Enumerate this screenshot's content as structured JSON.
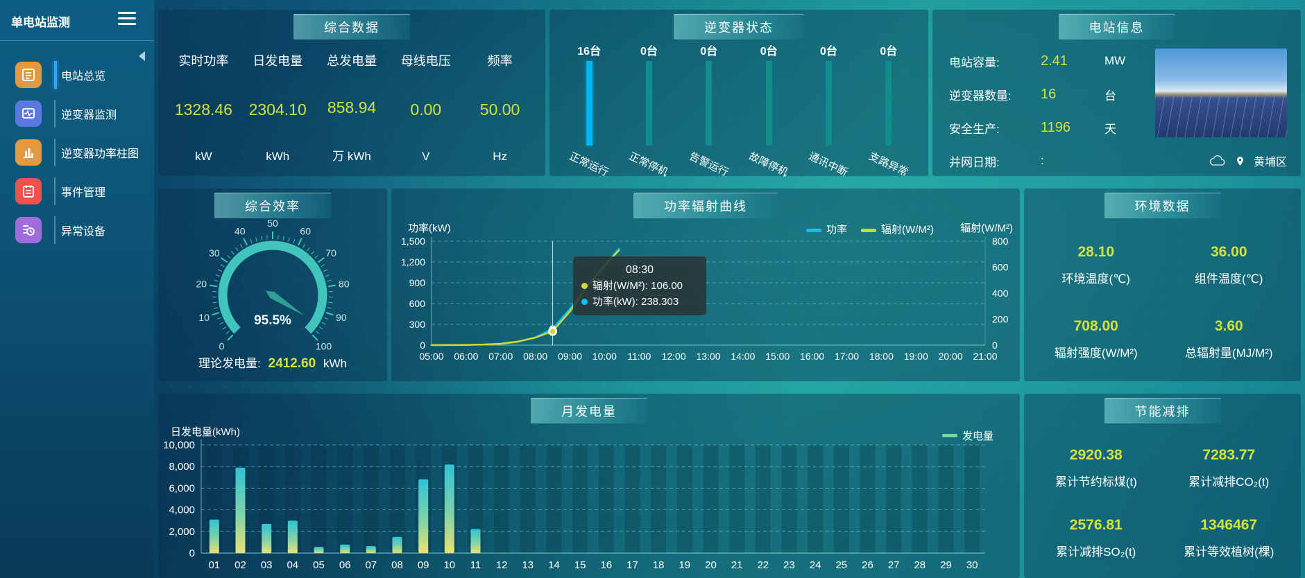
{
  "app": {
    "title": "单电站监测"
  },
  "colors": {
    "accent_value": "#d3e23c",
    "power_line": "#00c3ff",
    "radiation_line": "#d6d430",
    "active_bar": "#00b6f2",
    "idle_bar": "#118d8d"
  },
  "sidebar": {
    "items": [
      {
        "label": "电站总览",
        "color": "#e2993f",
        "active": true
      },
      {
        "label": "逆变器监测",
        "color": "#5b78e0",
        "active": false
      },
      {
        "label": "逆变器功率柱图",
        "color": "#e2993f",
        "active": false
      },
      {
        "label": "事件管理",
        "color": "#ef5350",
        "active": false
      },
      {
        "label": "异常设备",
        "color": "#9e6ddb",
        "active": false
      }
    ]
  },
  "summary": {
    "title": "综合数据",
    "metrics": [
      {
        "label": "实时功率",
        "value": "1328.46",
        "unit": "kW"
      },
      {
        "label": "日发电量",
        "value": "2304.10",
        "unit": "kWh"
      },
      {
        "label": "总发电量",
        "value": "858.94",
        "unit": "万 kWh"
      },
      {
        "label": "母线电压",
        "value": "0.00",
        "unit": "V"
      },
      {
        "label": "频率",
        "value": "50.00",
        "unit": "Hz"
      }
    ]
  },
  "inverter_status": {
    "title": "逆变器状态",
    "items": [
      {
        "count": "16台",
        "label": "正常运行",
        "highlight": true
      },
      {
        "count": "0台",
        "label": "正常停机",
        "highlight": false
      },
      {
        "count": "0台",
        "label": "告警运行",
        "highlight": false
      },
      {
        "count": "0台",
        "label": "故障停机",
        "highlight": false
      },
      {
        "count": "0台",
        "label": "通讯中断",
        "highlight": false
      },
      {
        "count": "0台",
        "label": "支路异常",
        "highlight": false
      }
    ]
  },
  "station_info": {
    "title": "电站信息",
    "rows": [
      {
        "label": "电站容量:",
        "value": "2.41",
        "unit": "MW"
      },
      {
        "label": "逆变器数量:",
        "value": "16",
        "unit": "台"
      },
      {
        "label": "安全生产:",
        "value": "1196",
        "unit": "天"
      },
      {
        "label": "并网日期:",
        "value": ":",
        "unit": ""
      }
    ],
    "location": "黄埔区"
  },
  "efficiency": {
    "title": "综合效率",
    "theory_label": "理论发电量:",
    "theory_value": "2412.60",
    "theory_unit": "kWh"
  },
  "power_curve_panel": {
    "title": "功率辐射曲线"
  },
  "environment": {
    "title": "环境数据",
    "metrics": [
      {
        "value": "28.10",
        "label": "环境温度(℃)"
      },
      {
        "value": "36.00",
        "label": "组件温度(℃)"
      },
      {
        "value": "708.00",
        "label": "辐射强度(W/M²)"
      },
      {
        "value": "3.60",
        "label": "总辐射量(MJ/M²)"
      }
    ]
  },
  "saving": {
    "title": "节能减排",
    "metrics": [
      {
        "value": "2920.38",
        "label": "累计节约标煤(t)"
      },
      {
        "value": "7283.77",
        "label": "累计减排CO₂(t)"
      },
      {
        "value": "2576.81",
        "label": "累计减排SO₂(t)"
      },
      {
        "value": "1346467",
        "label": "累计等效植树(棵)"
      }
    ]
  },
  "monthly_panel": {
    "title": "月发电量"
  },
  "chart_data": [
    {
      "id": "power_radiation_curve",
      "type": "line",
      "title": "功率辐射曲线",
      "ylabel_left": "功率(kW)",
      "ylabel_right": "辐射(W/M²)",
      "ylim_left": [
        0,
        1500
      ],
      "ylim_right": [
        0,
        800
      ],
      "yticks_left": [
        "1,500",
        "1,200",
        "900",
        "600",
        "300",
        "0"
      ],
      "yticks_right": [
        "800",
        "600",
        "400",
        "200",
        "0"
      ],
      "x_categories": [
        "05:00",
        "06:00",
        "07:00",
        "08:00",
        "09:00",
        "10:00",
        "11:00",
        "12:00",
        "13:00",
        "14:00",
        "15:00",
        "16:00",
        "17:00",
        "18:00",
        "19:00",
        "20:00",
        "21:00"
      ],
      "grid": "dashed-horizontal",
      "legend_position": "top-right",
      "legend": [
        {
          "name": "功率",
          "color": "#00c3ff"
        },
        {
          "name": "辐射(W/M²)",
          "color": "#d6d430"
        }
      ],
      "series": [
        {
          "name": "功率",
          "axis": "left",
          "color": "#00c3ff",
          "points": [
            [
              "05:00",
              0
            ],
            [
              "05:30",
              1
            ],
            [
              "06:00",
              3
            ],
            [
              "06:30",
              8
            ],
            [
              "07:00",
              18
            ],
            [
              "07:30",
              48
            ],
            [
              "08:00",
              112
            ],
            [
              "08:30",
              238.303
            ],
            [
              "09:00",
              520
            ],
            [
              "09:30",
              860
            ],
            [
              "10:00",
              1150
            ],
            [
              "10:25",
              1390
            ]
          ]
        },
        {
          "name": "辐射",
          "axis": "right",
          "color": "#d6d430",
          "points": [
            [
              "05:00",
              0
            ],
            [
              "05:30",
              1
            ],
            [
              "06:00",
              2
            ],
            [
              "06:30",
              5
            ],
            [
              "07:00",
              11
            ],
            [
              "07:30",
              28
            ],
            [
              "08:00",
              58
            ],
            [
              "08:30",
              106
            ],
            [
              "09:00",
              260
            ],
            [
              "09:30",
              450
            ],
            [
              "10:00",
              610
            ],
            [
              "10:25",
              730
            ]
          ]
        }
      ],
      "tooltip": {
        "time": "08:30",
        "x_category": "08:30",
        "rows": [
          {
            "text": "辐射(W/M²): 106.00",
            "color": "#d6d430"
          },
          {
            "text": "功率(kW): 238.303",
            "color": "#00c3ff"
          }
        ]
      }
    },
    {
      "id": "monthly_generation",
      "type": "bar",
      "title": "月发电量",
      "ylabel": "日发电量(kWh)",
      "ylim": [
        0,
        10000
      ],
      "yticks": [
        "10,000",
        "8,000",
        "6,000",
        "4,000",
        "2,000",
        "0"
      ],
      "categories": [
        "01",
        "02",
        "03",
        "04",
        "05",
        "06",
        "07",
        "08",
        "09",
        "10",
        "11",
        "12",
        "13",
        "14",
        "15",
        "16",
        "17",
        "18",
        "19",
        "20",
        "21",
        "22",
        "23",
        "24",
        "25",
        "26",
        "27",
        "28",
        "29",
        "30"
      ],
      "values": [
        3100,
        7900,
        2700,
        3000,
        570,
        790,
        640,
        1490,
        6830,
        8190,
        2230,
        0,
        0,
        0,
        0,
        0,
        0,
        0,
        0,
        0,
        0,
        0,
        0,
        0,
        0,
        0,
        0,
        0,
        0,
        0
      ],
      "grid": "dashed-horizontal",
      "legend_position": "top-right",
      "legend": [
        {
          "name": "发电量",
          "color": "#79d89b"
        }
      ]
    },
    {
      "id": "inverter_status_bars",
      "type": "bar",
      "title": "逆变器状态",
      "categories": [
        "正常运行",
        "正常停机",
        "告警运行",
        "故障停机",
        "通讯中断",
        "支路异常"
      ],
      "values": [
        16,
        0,
        0,
        0,
        0,
        0
      ],
      "unit": "台"
    },
    {
      "id": "efficiency_gauge",
      "type": "gauge",
      "title": "综合效率",
      "min": 0,
      "max": 100,
      "value": 95.5,
      "label": "95.5%",
      "ticks": [
        0,
        10,
        20,
        30,
        40,
        50,
        60,
        70,
        80,
        90,
        100
      ]
    }
  ]
}
